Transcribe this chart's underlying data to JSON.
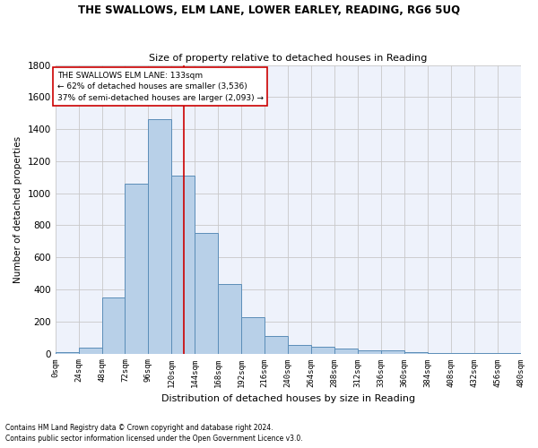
{
  "title": "THE SWALLOWS, ELM LANE, LOWER EARLEY, READING, RG6 5UQ",
  "subtitle": "Size of property relative to detached houses in Reading",
  "xlabel": "Distribution of detached houses by size in Reading",
  "ylabel": "Number of detached properties",
  "bar_color": "#b8d0e8",
  "bar_edge_color": "#5b8db8",
  "background_color": "#eef2fb",
  "grid_color": "#c8c8c8",
  "bin_size": 24,
  "num_bins": 20,
  "bar_values": [
    10,
    35,
    350,
    1060,
    1460,
    1110,
    750,
    435,
    225,
    110,
    55,
    45,
    30,
    20,
    20,
    8,
    5,
    3,
    2,
    1
  ],
  "tick_labels": [
    "0sqm",
    "24sqm",
    "48sqm",
    "72sqm",
    "96sqm",
    "120sqm",
    "144sqm",
    "168sqm",
    "192sqm",
    "216sqm",
    "240sqm",
    "264sqm",
    "288sqm",
    "312sqm",
    "336sqm",
    "360sqm",
    "384sqm",
    "408sqm",
    "432sqm",
    "456sqm",
    "480sqm"
  ],
  "property_line_x": 133,
  "property_line_color": "#cc0000",
  "annotation_line1": "THE SWALLOWS ELM LANE: 133sqm",
  "annotation_line2": "← 62% of detached houses are smaller (3,536)",
  "annotation_line3": "37% of semi-detached houses are larger (2,093) →",
  "annotation_box_color": "#cc0000",
  "ylim": [
    0,
    1800
  ],
  "yticks": [
    0,
    200,
    400,
    600,
    800,
    1000,
    1200,
    1400,
    1600,
    1800
  ],
  "footnote1": "Contains HM Land Registry data © Crown copyright and database right 2024.",
  "footnote2": "Contains public sector information licensed under the Open Government Licence v3.0."
}
